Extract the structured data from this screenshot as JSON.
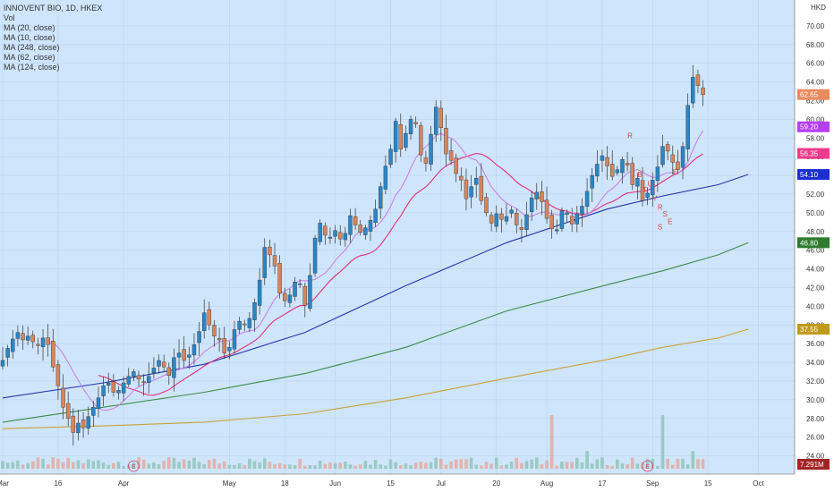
{
  "legend": {
    "title": "INNOVENT BIO, 1D, HKEX",
    "vol": "Vol",
    "ma1": "MA (20, close)",
    "ma2": "MA (10, close)",
    "ma3": "MA (248, close)",
    "ma4": "MA (62, close)",
    "ma5": "MA (124, close)"
  },
  "currency": "HKD",
  "colors": {
    "background": "#cfe5fb",
    "up": "#2a86c7",
    "down": "#d8855a",
    "ma10": "#c785e6",
    "ma20": "#e0307c",
    "ma62": "#2436a8",
    "ma124": "#3d8a4a",
    "ma248": "#c8a23a"
  },
  "badges": [
    {
      "label": "62.65",
      "value": 62.65,
      "color": "#e98b5f"
    },
    {
      "label": "59.20",
      "value": 59.2,
      "color": "#b53ff0"
    },
    {
      "label": "56.35",
      "value": 56.35,
      "color": "#ee3b8a"
    },
    {
      "label": "54.10",
      "value": 54.1,
      "color": "#1c2fd3"
    },
    {
      "label": "46.80",
      "value": 46.8,
      "color": "#2f7c2f"
    },
    {
      "label": "37.55",
      "value": 37.55,
      "color": "#c09a1a"
    },
    {
      "label": "7.291M",
      "value": 7.291,
      "color": "#a02424"
    }
  ],
  "annotations": [
    "R",
    "B",
    "T",
    "U",
    "Y",
    "R",
    "S",
    "E",
    "S",
    "E"
  ],
  "events": [
    "E",
    "E"
  ],
  "chart_data": {
    "type": "candlestick",
    "title": "INNOVENT BIO, 1D, HKEX",
    "ylabel": "HKD",
    "ylim": [
      23,
      72
    ],
    "yticks": [
      24,
      26,
      28,
      30,
      32,
      34,
      36,
      38,
      40,
      42,
      44,
      46,
      48,
      50,
      52,
      54,
      56,
      58,
      60,
      62,
      64,
      66,
      68,
      70
    ],
    "ytick_labels": [
      "24.00",
      "26.00",
      "28.00",
      "30.00",
      "32.00",
      "34.00",
      "36.00",
      "38.00",
      "40.00",
      "42.00",
      "44.00",
      "46.00",
      "48.00",
      "50.00",
      "52.00",
      "54.00",
      "56.00",
      "58.00",
      "60.00",
      "62.00",
      "64.00",
      "66.00",
      "68.00",
      "70.00"
    ],
    "xticks": [
      "Mar",
      "16",
      "Apr",
      "May",
      "18",
      "Jun",
      "15",
      "Jul",
      "20",
      "Aug",
      "17",
      "Sep",
      "15",
      "Oct"
    ],
    "xtick_days": [
      0,
      11,
      24,
      45,
      56,
      66,
      77,
      87,
      98,
      108,
      119,
      129,
      140,
      150
    ],
    "closes": [
      34.2,
      35.5,
      36.5,
      37.2,
      36.4,
      36.8,
      36.2,
      35.8,
      36.6,
      35.9,
      33.5,
      31.5,
      29.2,
      28.0,
      26.5,
      27.5,
      27.0,
      28.2,
      29.2,
      30.2,
      31.5,
      31.8,
      30.8,
      31.0,
      31.8,
      32.5,
      33.0,
      32.2,
      31.9,
      32.5,
      33.4,
      34.2,
      33.5,
      32.6,
      34.5,
      35.0,
      34.2,
      34.8,
      35.9,
      37.3,
      39.3,
      38.0,
      36.8,
      36.4,
      35.0,
      35.6,
      37.5,
      38.4,
      38.0,
      38.7,
      40.4,
      42.8,
      46.3,
      45.5,
      44.3,
      41.4,
      40.6,
      41.2,
      42.6,
      42.4,
      40.1,
      43.3,
      47.3,
      48.9,
      47.6,
      47.4,
      48.1,
      47.2,
      47.8,
      49.7,
      48.7,
      47.9,
      48.4,
      49.2,
      50.4,
      52.8,
      55.0,
      56.8,
      59.8,
      56.8,
      58.5,
      60.0,
      59.5,
      56.2,
      55.3,
      58.4,
      61.3,
      59.1,
      56.3,
      55.6,
      54.2,
      53.5,
      51.5,
      52.8,
      53.7,
      51.3,
      50.0,
      48.9,
      49.9,
      49.3,
      49.6,
      50.3,
      48.7,
      48.2,
      49.8,
      51.6,
      52.2,
      51.2,
      49.4,
      48.3,
      48.2,
      50.2,
      50.0,
      48.8,
      49.9,
      50.7,
      52.3,
      54.0,
      55.2,
      56.1,
      55.0,
      53.9,
      54.6,
      55.7,
      55.1,
      53.0,
      53.7,
      51.3,
      52.1,
      53.5,
      54.9,
      57.1,
      56.6,
      55.4,
      54.6,
      57.1,
      61.5,
      64.5,
      63.6,
      62.65
    ],
    "series": [
      {
        "name": "MA (10, close)",
        "values": [],
        "approx_end": 59.2
      },
      {
        "name": "MA (20, close)",
        "values": [],
        "approx_end": 56.35
      },
      {
        "name": "MA (62, close)",
        "points": [
          [
            0,
            30.2
          ],
          [
            20,
            31.8
          ],
          [
            40,
            33.8
          ],
          [
            60,
            37.2
          ],
          [
            80,
            42.2
          ],
          [
            100,
            46.8
          ],
          [
            120,
            50.4
          ],
          [
            131,
            51.8
          ],
          [
            142,
            53.0
          ],
          [
            148,
            54.1
          ]
        ]
      },
      {
        "name": "MA (124, close)",
        "points": [
          [
            0,
            27.6
          ],
          [
            20,
            29.2
          ],
          [
            40,
            30.8
          ],
          [
            60,
            32.8
          ],
          [
            80,
            35.6
          ],
          [
            100,
            39.5
          ],
          [
            120,
            42.3
          ],
          [
            131,
            43.8
          ],
          [
            142,
            45.5
          ],
          [
            148,
            46.8
          ]
        ]
      },
      {
        "name": "MA (248, close)",
        "points": [
          [
            0,
            26.9
          ],
          [
            20,
            27.2
          ],
          [
            40,
            27.6
          ],
          [
            60,
            28.5
          ],
          [
            80,
            30.2
          ],
          [
            100,
            32.3
          ],
          [
            120,
            34.3
          ],
          [
            131,
            35.6
          ],
          [
            142,
            36.6
          ],
          [
            148,
            37.55
          ]
        ]
      }
    ],
    "volume_label": "Vol",
    "volume_last": 7.291
  }
}
